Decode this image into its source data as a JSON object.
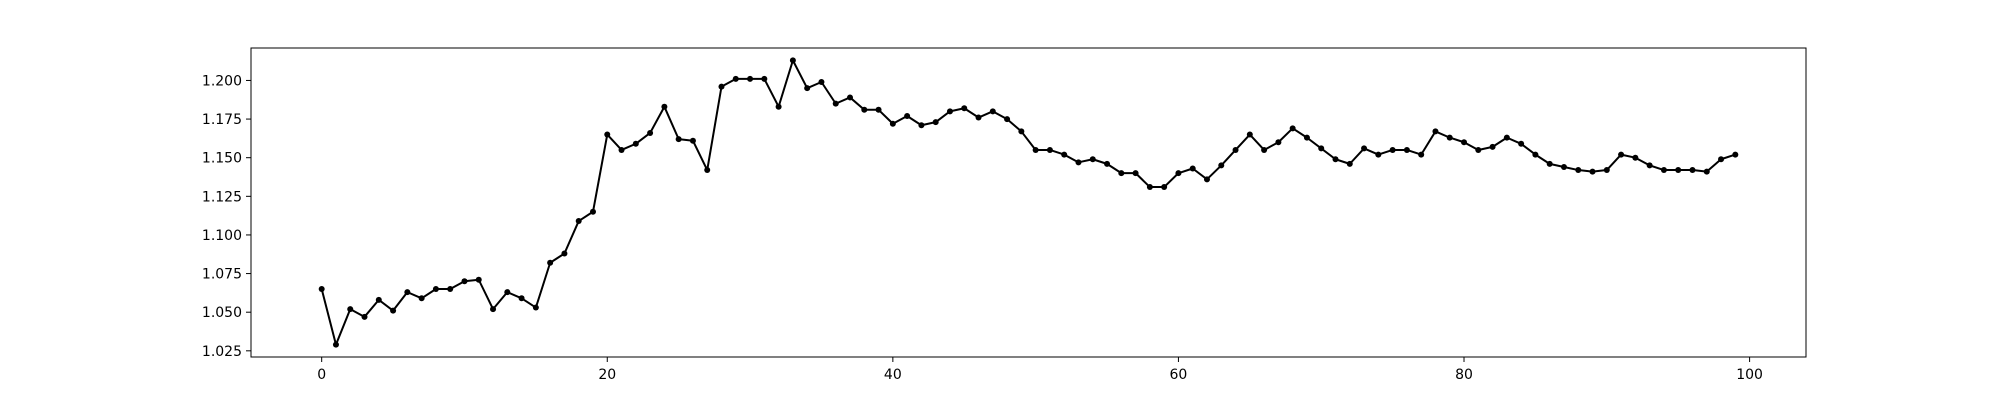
{
  "chart_data": {
    "type": "line",
    "title": "",
    "xlabel": "",
    "ylabel": "",
    "xlim": [
      -4.95,
      103.95
    ],
    "ylim": [
      1.021,
      1.221
    ],
    "grid": false,
    "legend": "none",
    "x_ticks": [
      0,
      20,
      40,
      60,
      80,
      100
    ],
    "y_ticks": [
      1.025,
      1.05,
      1.075,
      1.1,
      1.125,
      1.15,
      1.175,
      1.2
    ],
    "y_tick_labels": [
      "1.025",
      "1.050",
      "1.075",
      "1.100",
      "1.125",
      "1.150",
      "1.175",
      "1.200"
    ],
    "series": [
      {
        "color": "#000000",
        "marker": "circle",
        "values": [
          1.065,
          1.029,
          1.052,
          1.047,
          1.058,
          1.051,
          1.063,
          1.059,
          1.065,
          1.065,
          1.07,
          1.071,
          1.052,
          1.063,
          1.059,
          1.053,
          1.082,
          1.088,
          1.109,
          1.115,
          1.165,
          1.155,
          1.159,
          1.166,
          1.183,
          1.162,
          1.161,
          1.142,
          1.196,
          1.201,
          1.201,
          1.201,
          1.183,
          1.213,
          1.195,
          1.199,
          1.185,
          1.189,
          1.181,
          1.181,
          1.172,
          1.177,
          1.171,
          1.173,
          1.18,
          1.182,
          1.176,
          1.18,
          1.175,
          1.167,
          1.155,
          1.155,
          1.152,
          1.147,
          1.149,
          1.146,
          1.14,
          1.14,
          1.131,
          1.131,
          1.14,
          1.143,
          1.136,
          1.145,
          1.155,
          1.165,
          1.155,
          1.16,
          1.169,
          1.163,
          1.156,
          1.149,
          1.146,
          1.156,
          1.152,
          1.155,
          1.155,
          1.152,
          1.167,
          1.163,
          1.16,
          1.155,
          1.157,
          1.163,
          1.159,
          1.152,
          1.146,
          1.144,
          1.142,
          1.141,
          1.142,
          1.152,
          1.15,
          1.145,
          1.142,
          1.142,
          1.142,
          1.141,
          1.149,
          1.152
        ]
      }
    ]
  }
}
